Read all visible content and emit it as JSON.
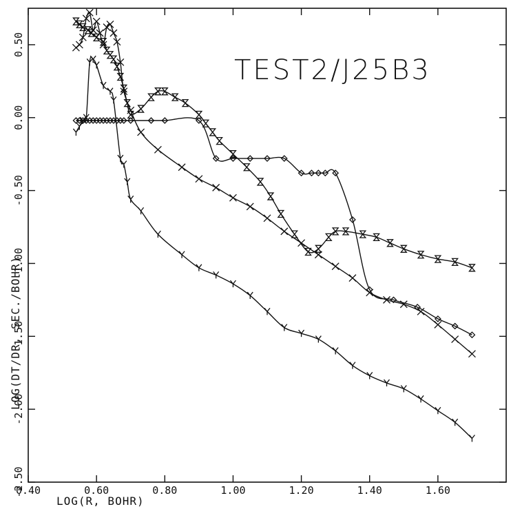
{
  "chart_data": {
    "type": "line",
    "title": "TEST2/J25B3",
    "xlabel": "LOG(R, BOHR)",
    "ylabel": "LOG(DT/DR, SEC./BOHR)",
    "xlim": [
      0.4,
      1.8
    ],
    "ylim": [
      -2.5,
      0.75
    ],
    "grid": false,
    "x_ticks": [
      0.4,
      0.6,
      0.8,
      1.0,
      1.2,
      1.4,
      1.6
    ],
    "x_tick_labels": [
      "0.40",
      "0.60",
      "0.80",
      "1.00",
      "1.20",
      "1.40",
      "1.60"
    ],
    "y_ticks": [
      -2.5,
      -2.0,
      -1.5,
      -1.0,
      -0.5,
      0.0,
      0.5
    ],
    "y_tick_labels": [
      "-2.50",
      "-2.00",
      "-1.50",
      "-1.00",
      "-0.50",
      "0.00",
      "0.50"
    ],
    "series": [
      {
        "marker": "hourglass",
        "x": [
          0.54,
          0.55,
          0.56,
          0.575,
          0.585,
          0.6,
          0.62,
          0.63,
          0.64,
          0.65,
          0.66,
          0.67,
          0.68,
          0.69,
          0.7,
          0.73,
          0.76,
          0.78,
          0.8,
          0.83,
          0.86,
          0.9,
          0.92,
          0.94,
          0.96,
          1.0,
          1.04,
          1.08,
          1.11,
          1.14,
          1.18,
          1.22,
          1.25,
          1.28,
          1.3,
          1.33,
          1.38,
          1.42,
          1.46,
          1.5,
          1.55,
          1.6,
          1.65,
          1.7
        ],
        "y": [
          0.66,
          0.64,
          0.62,
          0.6,
          0.58,
          0.55,
          0.52,
          0.46,
          0.43,
          0.4,
          0.35,
          0.28,
          0.2,
          0.1,
          0.02,
          0.06,
          0.14,
          0.18,
          0.18,
          0.14,
          0.1,
          0.02,
          -0.04,
          -0.1,
          -0.16,
          -0.25,
          -0.34,
          -0.44,
          -0.54,
          -0.66,
          -0.8,
          -0.92,
          -0.9,
          -0.82,
          -0.78,
          -0.78,
          -0.8,
          -0.82,
          -0.86,
          -0.9,
          -0.94,
          -0.97,
          -0.99,
          -1.03
        ]
      },
      {
        "marker": "diamond",
        "x": [
          0.54,
          0.55,
          0.56,
          0.57,
          0.58,
          0.59,
          0.6,
          0.61,
          0.62,
          0.63,
          0.64,
          0.65,
          0.66,
          0.67,
          0.68,
          0.7,
          0.76,
          0.8,
          0.9,
          0.95,
          1.0,
          1.05,
          1.1,
          1.15,
          1.2,
          1.23,
          1.25,
          1.27,
          1.3,
          1.35,
          1.4,
          1.47,
          1.54,
          1.6,
          1.65,
          1.7
        ],
        "y": [
          -0.02,
          -0.02,
          -0.02,
          -0.02,
          -0.02,
          -0.02,
          -0.02,
          -0.02,
          -0.02,
          -0.02,
          -0.02,
          -0.02,
          -0.02,
          -0.02,
          -0.02,
          -0.02,
          -0.02,
          -0.02,
          -0.02,
          -0.28,
          -0.28,
          -0.28,
          -0.28,
          -0.28,
          -0.38,
          -0.38,
          -0.38,
          -0.38,
          -0.38,
          -0.7,
          -1.18,
          -1.25,
          -1.3,
          -1.38,
          -1.43,
          -1.49
        ]
      },
      {
        "marker": "x",
        "x": [
          0.54,
          0.55,
          0.56,
          0.57,
          0.58,
          0.59,
          0.6,
          0.61,
          0.62,
          0.63,
          0.64,
          0.65,
          0.66,
          0.67,
          0.68,
          0.7,
          0.73,
          0.78,
          0.85,
          0.9,
          0.95,
          1.0,
          1.05,
          1.1,
          1.15,
          1.2,
          1.25,
          1.3,
          1.35,
          1.4,
          1.45,
          1.5,
          1.55,
          1.6,
          1.65,
          1.7
        ],
        "y": [
          0.48,
          0.5,
          0.55,
          0.68,
          0.72,
          0.6,
          0.66,
          0.58,
          0.5,
          0.62,
          0.64,
          0.58,
          0.52,
          0.38,
          0.18,
          0.05,
          -0.1,
          -0.22,
          -0.34,
          -0.42,
          -0.48,
          -0.55,
          -0.61,
          -0.69,
          -0.78,
          -0.86,
          -0.94,
          -1.02,
          -1.1,
          -1.2,
          -1.25,
          -1.28,
          -1.33,
          -1.42,
          -1.52,
          -1.62
        ]
      },
      {
        "marker": "y",
        "x": [
          0.54,
          0.55,
          0.56,
          0.57,
          0.58,
          0.59,
          0.6,
          0.62,
          0.64,
          0.65,
          0.67,
          0.68,
          0.69,
          0.7,
          0.73,
          0.78,
          0.85,
          0.9,
          0.95,
          1.0,
          1.05,
          1.1,
          1.15,
          1.2,
          1.25,
          1.3,
          1.35,
          1.4,
          1.45,
          1.5,
          1.55,
          1.6,
          1.65,
          1.7
        ],
        "y": [
          -0.1,
          -0.06,
          -0.02,
          0.0,
          0.38,
          0.4,
          0.36,
          0.22,
          0.18,
          0.12,
          -0.28,
          -0.32,
          -0.44,
          -0.56,
          -0.64,
          -0.8,
          -0.94,
          -1.03,
          -1.08,
          -1.14,
          -1.22,
          -1.33,
          -1.44,
          -1.48,
          -1.52,
          -1.6,
          -1.7,
          -1.77,
          -1.82,
          -1.86,
          -1.93,
          -2.01,
          -2.09,
          -2.2
        ]
      }
    ]
  }
}
